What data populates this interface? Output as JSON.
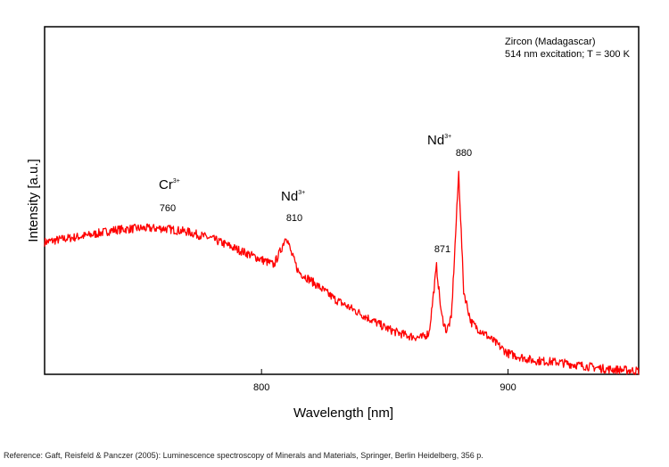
{
  "chart_data": {
    "type": "line",
    "title_lines": [
      "Zircon (Madagascar)",
      "514 nm excitation; T = 300 K"
    ],
    "xlabel": "Wavelength [nm]",
    "ylabel": "Intensity [a.u.]",
    "xlim": [
      712,
      953
    ],
    "ylim": [
      0,
      1
    ],
    "x_ticks": [
      800,
      900
    ],
    "line_color": "#ff0000",
    "series": [
      {
        "x": [
          712,
          720,
          730,
          740,
          750,
          760,
          770,
          780,
          790,
          800,
          805,
          808,
          810,
          812,
          815,
          820,
          830,
          840,
          850,
          855,
          860,
          865,
          868,
          871,
          873,
          875,
          877,
          880,
          882,
          885,
          888,
          890,
          895,
          900,
          910,
          920,
          930,
          940,
          953
        ],
        "y": [
          0.38,
          0.39,
          0.4,
          0.415,
          0.42,
          0.42,
          0.41,
          0.39,
          0.36,
          0.33,
          0.315,
          0.36,
          0.4,
          0.35,
          0.295,
          0.27,
          0.215,
          0.175,
          0.135,
          0.12,
          0.11,
          0.105,
          0.12,
          0.31,
          0.17,
          0.125,
          0.16,
          0.58,
          0.24,
          0.15,
          0.13,
          0.12,
          0.09,
          0.06,
          0.04,
          0.035,
          0.025,
          0.015,
          0.01
        ]
      }
    ],
    "annotations": [
      {
        "ion": "Cr",
        "charge": "3+",
        "wavelength": "760"
      },
      {
        "ion": "Nd",
        "charge": "3+",
        "wavelength": "810"
      },
      {
        "ion": "Nd",
        "charge": "3+",
        "wavelength": null
      },
      {
        "ion": null,
        "charge": null,
        "wavelength": "871"
      },
      {
        "ion": null,
        "charge": null,
        "wavelength": "880"
      }
    ]
  },
  "reference": "Reference: Gaft, Reisfeld & Panczer (2005): Luminescence spectroscopy of Minerals and Materials, Springer, Berlin Heidelberg, 356 p."
}
